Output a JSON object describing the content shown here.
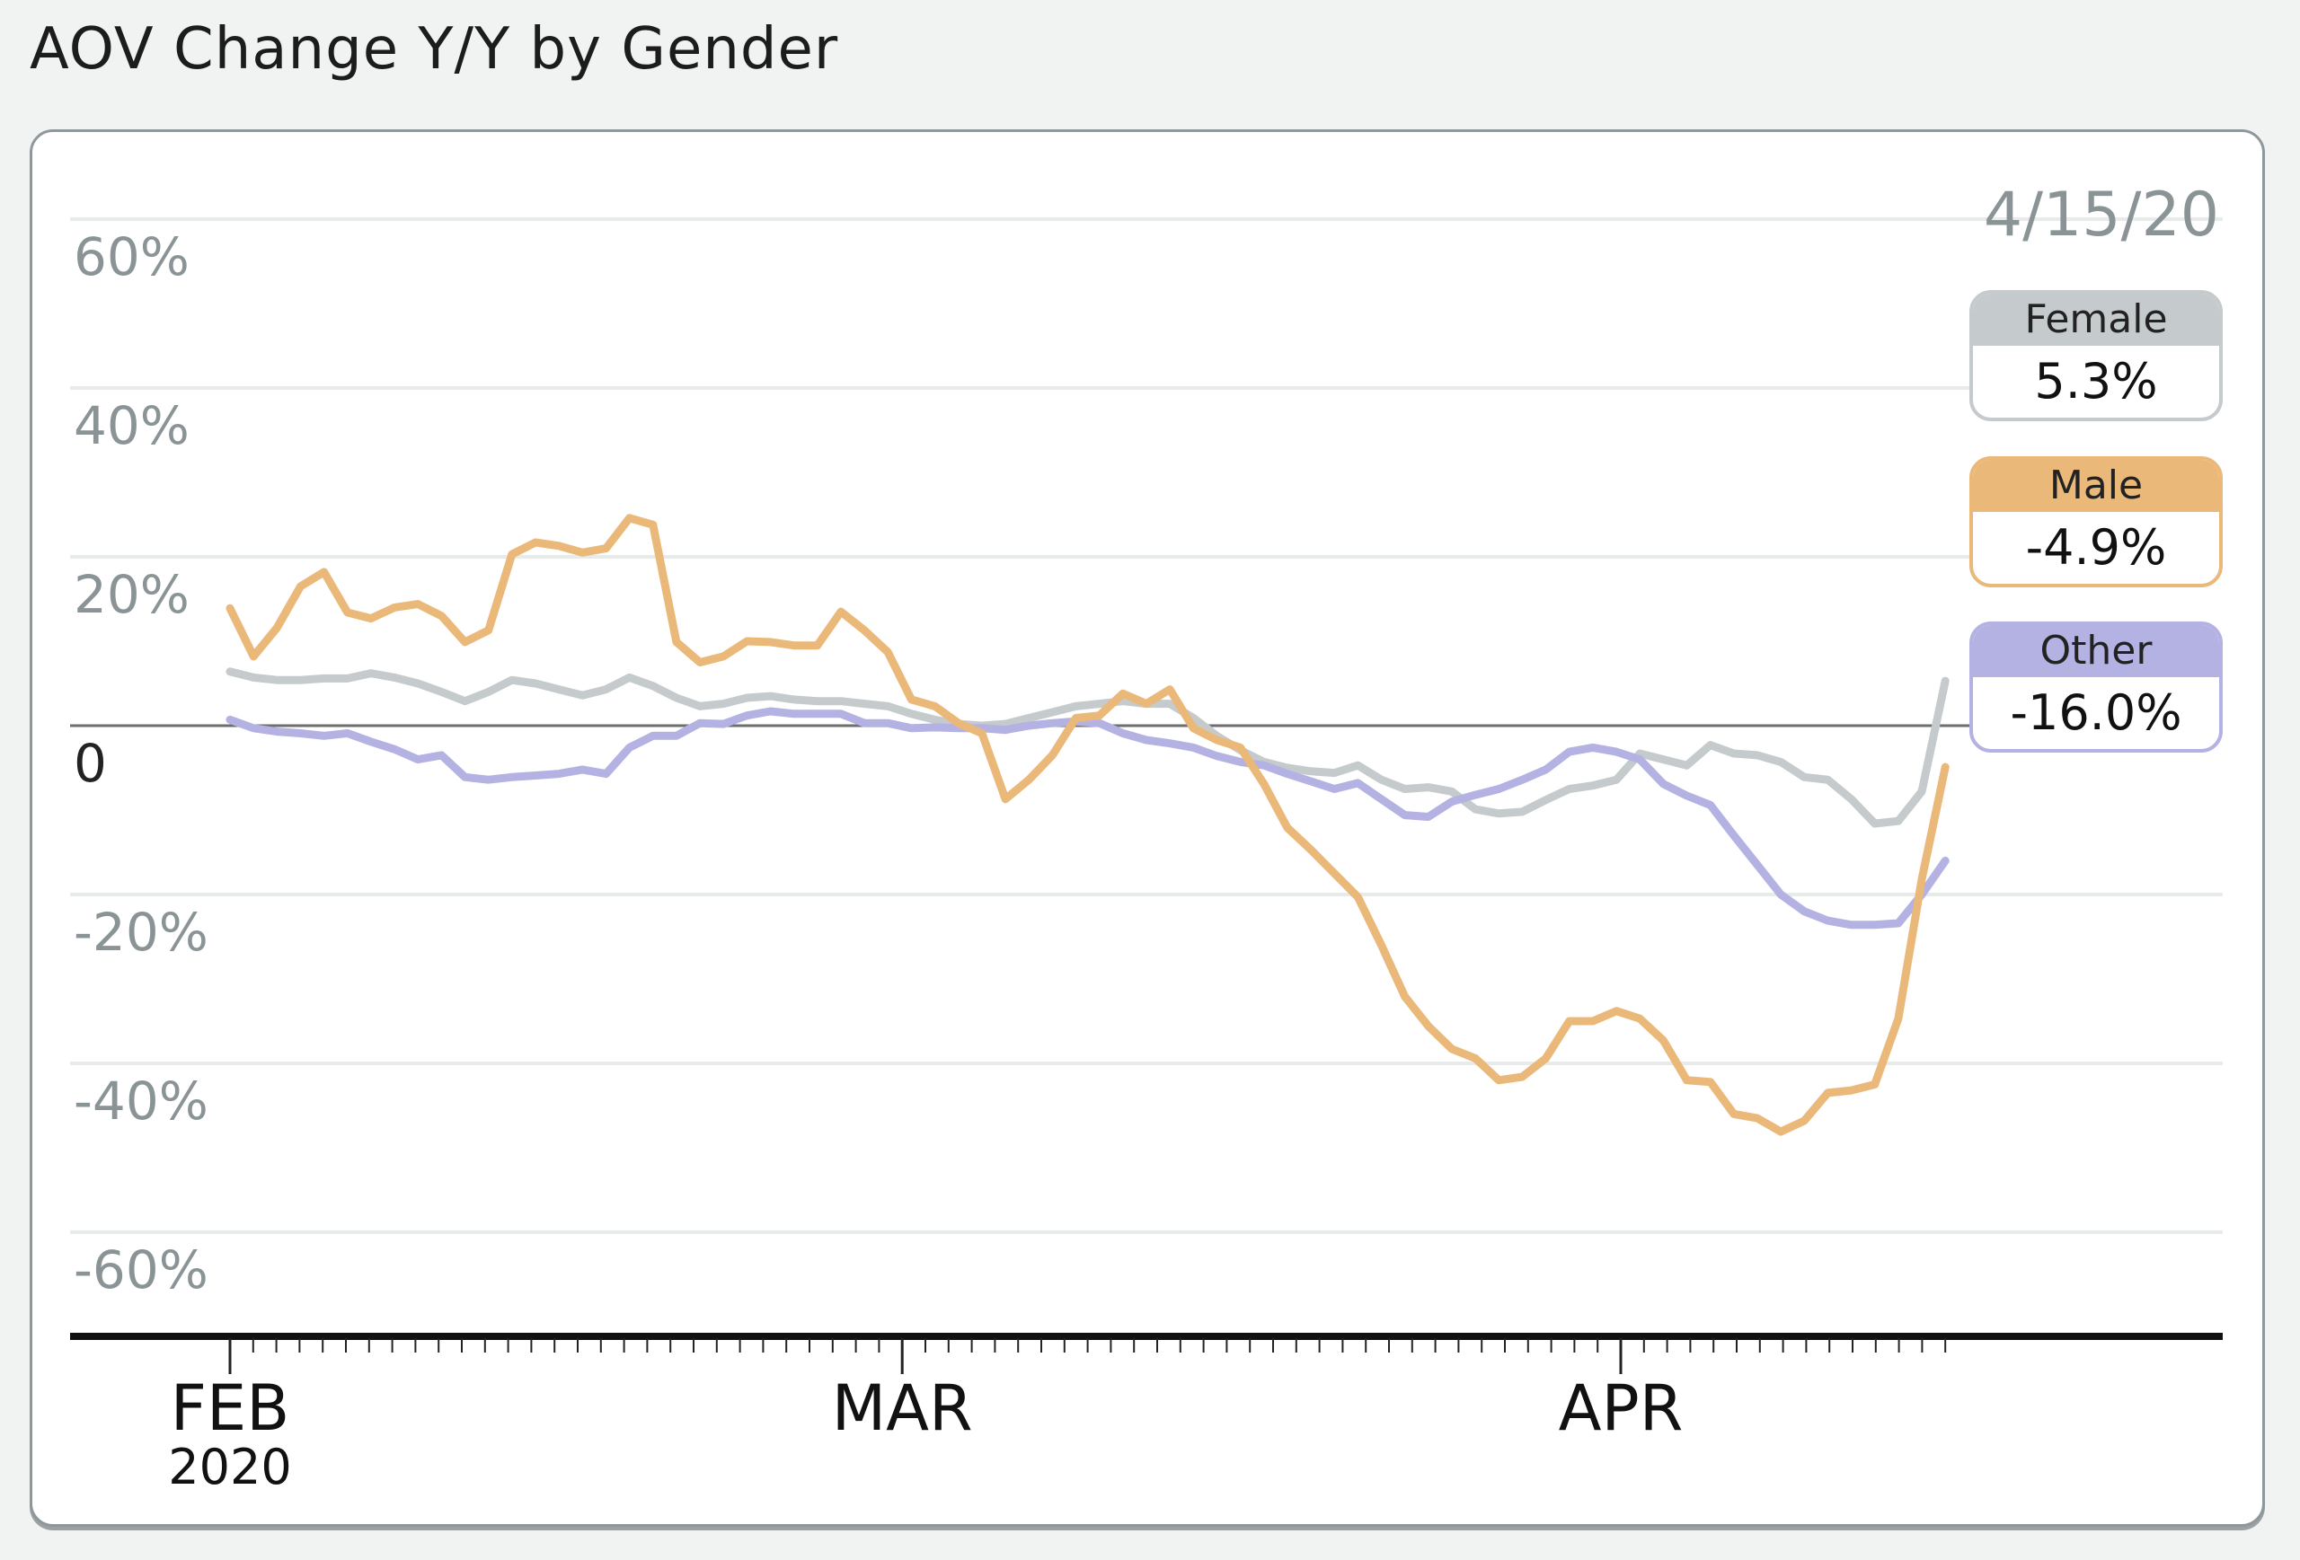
{
  "title": "AOV Change Y/Y by Gender",
  "colors": {
    "female": "#c5cacc",
    "male": "#eab97a",
    "other": "#b4b2e2",
    "grid": "#e7eceb",
    "axis": "#111111",
    "tick_label": "#8a9395"
  },
  "chart_data": {
    "type": "line",
    "title": "AOV Change Y/Y by Gender",
    "xlabel": "",
    "ylabel": "",
    "x_start": "2020-02-01",
    "x_end": "2020-04-15",
    "ylim": [
      -60,
      60
    ],
    "yticks": [
      60,
      40,
      20,
      0,
      -20,
      -40,
      -60
    ],
    "ytick_labels": [
      "60%",
      "40%",
      "20%",
      "0",
      "-20%",
      "-40%",
      "-60%"
    ],
    "xtick_labels": [
      {
        "label": "FEB",
        "sub": "2020",
        "day": 0
      },
      {
        "label": "MAR",
        "sub": "",
        "day": 29
      },
      {
        "label": "APR",
        "sub": "",
        "day": 60
      }
    ],
    "days": 75,
    "grid": true,
    "hover_date": "4/15/20",
    "legend_placement": "right",
    "series": [
      {
        "name": "Female",
        "key": "female",
        "current": "5.3%",
        "values": [
          6.4,
          5.7,
          5.4,
          5.4,
          5.6,
          5.6,
          6.2,
          5.7,
          5,
          4,
          2.9,
          4,
          5.4,
          5,
          4.3,
          3.6,
          4.3,
          5.7,
          4.7,
          3.3,
          2.3,
          2.6,
          3.3,
          3.5,
          3.1,
          2.9,
          2.9,
          2.6,
          2.3,
          1.4,
          0.7,
          0.2,
          0,
          0.2,
          0.9,
          1.6,
          2.3,
          2.6,
          2.9,
          2.6,
          2.6,
          0.9,
          -1.2,
          -2.9,
          -4.3,
          -5,
          -5.4,
          -5.6,
          -4.7,
          -6.4,
          -7.5,
          -7.3,
          -7.8,
          -9.9,
          -10.4,
          -10.2,
          -8.8,
          -7.5,
          -7.1,
          -6.4,
          -3.3,
          -4,
          -4.7,
          -2.3,
          -3.3,
          -3.5,
          -4.3,
          -6.1,
          -6.4,
          -8.7,
          -11.6,
          -11.3,
          -7.8,
          5.3
        ]
      },
      {
        "name": "Male",
        "key": "male",
        "current": "-4.9%",
        "values": [
          13.9,
          8.2,
          11.6,
          16.5,
          18.2,
          13.4,
          12.7,
          14,
          14.4,
          13,
          9.9,
          11.3,
          20.3,
          21.7,
          21.3,
          20.5,
          21,
          24.6,
          23.8,
          9.9,
          7.5,
          8.2,
          10,
          9.9,
          9.5,
          9.5,
          13.5,
          11.3,
          8.7,
          3.1,
          2.3,
          0.3,
          -0.9,
          -8.7,
          -6.4,
          -3.5,
          0.9,
          1.2,
          3.8,
          2.6,
          4.3,
          -0.3,
          -1.7,
          -2.6,
          -6.9,
          -12.1,
          -14.7,
          -17.5,
          -20.3,
          -26,
          -32.1,
          -35.6,
          -38.3,
          -39.4,
          -42,
          -41.6,
          -39.4,
          -35,
          -35,
          -33.8,
          -34.7,
          -37.3,
          -42,
          -42.2,
          -46,
          -46.5,
          -48.1,
          -46.8,
          -43.5,
          -43.2,
          -42.5,
          -34.7,
          -18.2,
          -4.9
        ]
      },
      {
        "name": "Other",
        "key": "other",
        "current": "-16.0%",
        "values": [
          0.7,
          -0.3,
          -0.7,
          -0.9,
          -1.2,
          -0.9,
          -1.9,
          -2.8,
          -4,
          -3.5,
          -6.1,
          -6.4,
          -6.1,
          -5.9,
          -5.7,
          -5.2,
          -5.7,
          -2.6,
          -1.2,
          -1.2,
          0.3,
          0.2,
          1.2,
          1.7,
          1.4,
          1.4,
          1.4,
          0.3,
          0.3,
          -0.3,
          -0.2,
          -0.3,
          -0.3,
          -0.5,
          0,
          0.3,
          0.5,
          0.3,
          -0.9,
          -1.7,
          -2.1,
          -2.6,
          -3.6,
          -4.3,
          -4.7,
          -5.7,
          -6.6,
          -7.5,
          -6.8,
          -8.7,
          -10.6,
          -10.8,
          -9,
          -8.2,
          -7.5,
          -6.4,
          -5.2,
          -3.1,
          -2.6,
          -3.1,
          -4,
          -6.9,
          -8.3,
          -9.4,
          -13,
          -16.5,
          -20,
          -22,
          -23.1,
          -23.6,
          -23.6,
          -23.4,
          -20,
          -16
        ]
      }
    ]
  }
}
